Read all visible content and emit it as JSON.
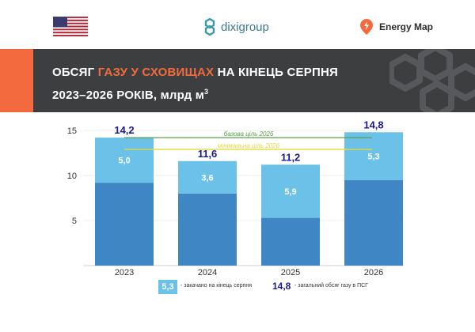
{
  "header": {
    "title_part1": "ОБСЯГ ",
    "title_highlight": "ГАЗУ У СХОВИЩАХ",
    "title_part2": " НА КІНЕЦЬ СЕРПНЯ",
    "title_line2": "2023–2026 РОКІВ, млрд м",
    "title_sup": "3"
  },
  "logos": {
    "flag": "us-flag-icon",
    "dixi_text": "dixigroup",
    "energy_map_text": "Energy Map"
  },
  "colors": {
    "accent": "#f26a3d",
    "header_bg": "#3d3e40",
    "bar_base": "#3f86c4",
    "bar_injected": "#6bc1e8",
    "total_label": "#1a1a8c",
    "target_base": "#5aa04a",
    "target_min": "#e7d83a"
  },
  "chart_data": {
    "type": "bar",
    "stacked": true,
    "categories": [
      "2023",
      "2024",
      "2025",
      "2026"
    ],
    "totals": [
      14.2,
      11.6,
      11.2,
      14.8
    ],
    "injected": [
      5.0,
      3.6,
      5.9,
      5.3
    ],
    "injected_labels": [
      "5,0",
      "3,6",
      "5,9",
      "5,3"
    ],
    "total_labels": [
      "14,2",
      "11,6",
      "11,2",
      "14,8"
    ],
    "series": [
      {
        "values": [
          9.2,
          8.0,
          5.3,
          9.5
        ]
      },
      {
        "values": [
          5.0,
          3.6,
          5.9,
          5.3
        ]
      }
    ],
    "y_ticks": [
      5,
      10,
      15
    ],
    "ylim": [
      0,
      16
    ],
    "reference_lines": [
      {
        "name": "базова ціль 2026",
        "value": 14.2
      },
      {
        "name": "мінімальна ціль 2026",
        "value": 12.9
      }
    ],
    "legend": {
      "injected_sample": "5,3",
      "injected_text": "- закачано на кінець серпня",
      "total_sample": "14,8",
      "total_text": "- загальний обсяг газу в ПСГ"
    }
  }
}
